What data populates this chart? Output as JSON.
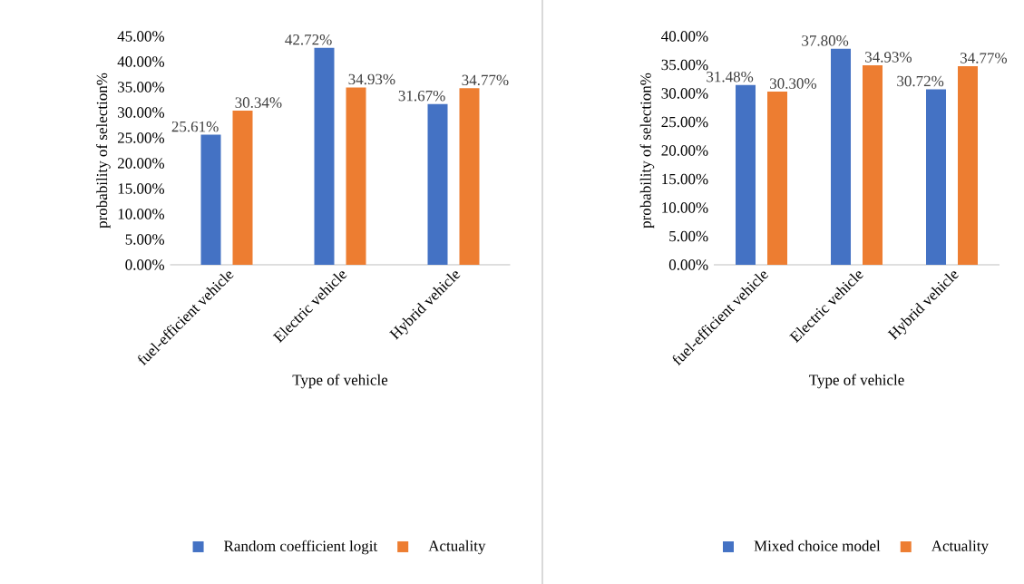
{
  "chart_data": [
    {
      "type": "bar",
      "xlabel": "Type of vehicle",
      "ylabel": "probability of selection%",
      "categories": [
        "fuel-efficient vehicle",
        "Electric vehicle",
        "Hybrid vehicle"
      ],
      "series": [
        {
          "name": "Random coefficient logit",
          "color": "#4472c4",
          "values": [
            25.61,
            42.72,
            31.67
          ],
          "value_labels": [
            "25.61%",
            "42.72%",
            "31.67%"
          ]
        },
        {
          "name": "Actuality",
          "color": "#ed7d31",
          "values": [
            30.34,
            34.93,
            34.77
          ],
          "value_labels": [
            "30.34%",
            "34.93%",
            "34.77%"
          ]
        }
      ],
      "ylim": [
        0,
        45
      ],
      "yticks": [
        {
          "value": 0,
          "label": "0.00%"
        },
        {
          "value": 5,
          "label": "5.00%"
        },
        {
          "value": 10,
          "label": "10.00%"
        },
        {
          "value": 15,
          "label": "15.00%"
        },
        {
          "value": 20,
          "label": "20.00%"
        },
        {
          "value": 25,
          "label": "25.00%"
        },
        {
          "value": 30,
          "label": "30.00%"
        },
        {
          "value": 35,
          "label": "35.00%"
        },
        {
          "value": 40,
          "label": "40.00%"
        },
        {
          "value": 45,
          "label": "45.00%"
        }
      ],
      "legend": "bottom"
    },
    {
      "type": "bar",
      "xlabel": "Type of vehicle",
      "ylabel": "probability of selection%",
      "categories": [
        "fuel-efficient vehicle",
        "Electric vehicle",
        "Hybrid vehicle"
      ],
      "series": [
        {
          "name": "Mixed choice model",
          "color": "#4472c4",
          "values": [
            31.48,
            37.8,
            30.72
          ],
          "value_labels": [
            "31.48%",
            "37.80%",
            "30.72%"
          ]
        },
        {
          "name": "Actuality",
          "color": "#ed7d31",
          "values": [
            30.3,
            34.93,
            34.77
          ],
          "value_labels": [
            "30.30%",
            "34.93%",
            "34.77%"
          ]
        }
      ],
      "ylim": [
        0,
        40
      ],
      "yticks": [
        {
          "value": 0,
          "label": "0.00%"
        },
        {
          "value": 5,
          "label": "5.00%"
        },
        {
          "value": 10,
          "label": "10.00%"
        },
        {
          "value": 15,
          "label": "15.00%"
        },
        {
          "value": 20,
          "label": "20.00%"
        },
        {
          "value": 25,
          "label": "25.00%"
        },
        {
          "value": 30,
          "label": "30.00%"
        },
        {
          "value": 35,
          "label": "35.00%"
        },
        {
          "value": 40,
          "label": "40.00%"
        }
      ],
      "legend": "bottom"
    }
  ]
}
